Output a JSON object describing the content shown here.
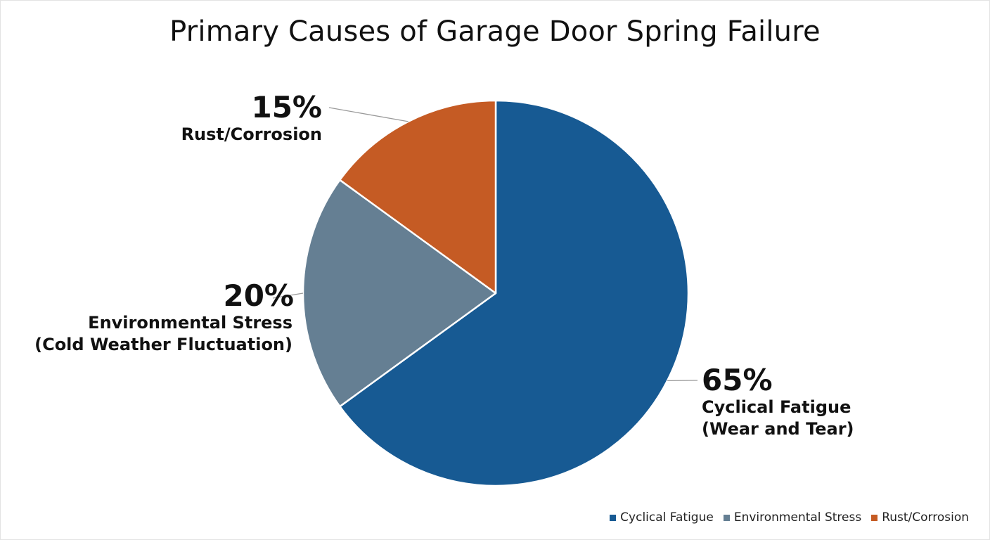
{
  "chart_data": {
    "type": "pie",
    "title": "Primary Causes of Garage Door Spring Failure",
    "slices": [
      {
        "key": "cyclical",
        "label": "Cyclical Fatigue",
        "callout": "Cyclical Fatigue\n(Wear and Tear)",
        "value": 65,
        "value_label": "65%",
        "color": "#175a93"
      },
      {
        "key": "environmental",
        "label": "Environmental Stress",
        "callout": "Environmental Stress\n(Cold Weather Fluctuation)",
        "value": 20,
        "value_label": "20%",
        "color": "#657f93"
      },
      {
        "key": "rust",
        "label": "Rust/Corrosion",
        "callout": "Rust/Corrosion",
        "value": 15,
        "value_label": "15%",
        "color": "#c55b24"
      }
    ],
    "start_angle_deg": 0,
    "direction": "clockwise",
    "legend_position": "bottom-right"
  }
}
